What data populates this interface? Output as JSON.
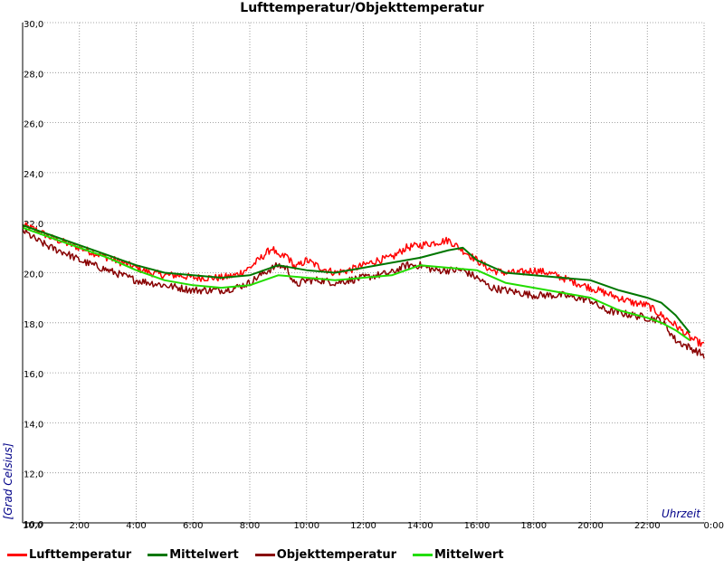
{
  "chart_data": {
    "type": "line",
    "title": "Lufttemperatur/Objekttemperatur",
    "xlabel": "Uhrzeit",
    "ylabel": "[Grad Celsius]",
    "ylim": [
      10,
      30
    ],
    "xlim": [
      0,
      24
    ],
    "grid": true,
    "legend_position": "bottom",
    "y_ticks": [
      "10,0",
      "12,0",
      "14,0",
      "16,0",
      "18,0",
      "20,0",
      "22,0",
      "24,0",
      "26,0",
      "28,0",
      "30,0"
    ],
    "x_ticks": [
      "10,0",
      "2:00",
      "4:00",
      "6:00",
      "8:00",
      "10:00",
      "12:00",
      "14:00",
      "16:00",
      "18:00",
      "20:00",
      "22:00",
      "0:00"
    ],
    "series": [
      {
        "name": "Lufttemperatur",
        "color": "#ff0000",
        "noise": 0.3,
        "x": [
          0,
          0.5,
          1,
          1.5,
          2,
          2.5,
          3,
          3.5,
          4,
          4.5,
          5,
          5.5,
          6,
          6.5,
          7,
          7.5,
          8,
          8.5,
          8.8,
          9,
          9.3,
          9.6,
          10,
          10.5,
          11,
          11.5,
          12,
          12.5,
          13,
          13.5,
          14,
          14.5,
          15,
          15.5,
          16,
          16.5,
          17,
          17.5,
          18,
          18.5,
          19,
          19.5,
          20,
          20.5,
          21,
          21.5,
          22,
          22.5,
          23,
          23.5,
          24
        ],
        "y": [
          21.9,
          21.7,
          21.4,
          21.2,
          21.0,
          20.8,
          20.6,
          20.4,
          20.2,
          20.0,
          19.9,
          19.9,
          19.8,
          19.8,
          19.8,
          19.9,
          20.2,
          20.7,
          21.0,
          20.6,
          20.7,
          20.2,
          20.5,
          20.2,
          20.0,
          20.1,
          20.3,
          20.5,
          20.6,
          21.0,
          21.1,
          21.2,
          21.3,
          20.9,
          20.5,
          20.1,
          20.0,
          20.0,
          20.1,
          20.0,
          19.8,
          19.6,
          19.4,
          19.2,
          19.0,
          18.8,
          18.7,
          18.3,
          17.9,
          17.4,
          17.1
        ]
      },
      {
        "name": "Mittelwert",
        "color": "#007700",
        "noise": 0,
        "x": [
          0,
          1,
          2,
          3,
          4,
          5,
          6,
          7,
          8,
          9,
          10,
          11,
          12,
          13,
          14,
          15,
          15.5,
          16,
          17,
          18,
          19,
          20,
          21,
          22,
          22.5,
          23,
          23.5
        ],
        "y": [
          21.9,
          21.5,
          21.1,
          20.7,
          20.3,
          20.0,
          19.9,
          19.8,
          19.9,
          20.3,
          20.1,
          20.0,
          20.2,
          20.4,
          20.6,
          20.9,
          21.0,
          20.5,
          20.0,
          19.9,
          19.8,
          19.7,
          19.3,
          19.0,
          18.8,
          18.3,
          17.6
        ]
      },
      {
        "name": "Objekttemperatur",
        "color": "#880000",
        "noise": 0.3,
        "x": [
          0,
          0.5,
          1,
          1.5,
          2,
          2.5,
          3,
          3.5,
          4,
          4.5,
          5,
          5.5,
          6,
          6.5,
          7,
          7.5,
          8,
          8.5,
          9,
          9.3,
          9.6,
          10,
          10.5,
          11,
          11.5,
          12,
          12.5,
          13,
          13.5,
          14,
          14.5,
          15,
          15.5,
          16,
          16.5,
          17,
          17.5,
          18,
          18.5,
          19,
          19.5,
          20,
          20.5,
          21,
          21.5,
          22,
          22.5,
          23,
          23.5,
          24
        ],
        "y": [
          21.7,
          21.3,
          21.0,
          20.8,
          20.5,
          20.3,
          20.1,
          19.9,
          19.7,
          19.6,
          19.5,
          19.4,
          19.3,
          19.3,
          19.3,
          19.4,
          19.6,
          20.0,
          20.3,
          20.2,
          19.5,
          19.7,
          19.7,
          19.6,
          19.7,
          19.8,
          19.9,
          20.0,
          20.3,
          20.3,
          20.1,
          20.1,
          20.1,
          19.8,
          19.4,
          19.3,
          19.2,
          19.1,
          19.1,
          19.1,
          19.0,
          18.9,
          18.5,
          18.4,
          18.3,
          18.2,
          18.1,
          17.3,
          17.0,
          16.7
        ]
      },
      {
        "name": "Mittelwert",
        "color": "#22dd00",
        "noise": 0,
        "x": [
          0,
          1,
          2,
          3,
          4,
          5,
          6,
          7,
          8,
          9,
          10,
          11,
          12,
          13,
          14,
          15,
          16,
          17,
          18,
          19,
          20,
          21,
          22,
          22.5,
          23,
          23.5
        ],
        "y": [
          21.8,
          21.4,
          21.0,
          20.6,
          20.1,
          19.7,
          19.5,
          19.4,
          19.5,
          19.9,
          19.8,
          19.7,
          19.8,
          19.9,
          20.3,
          20.2,
          20.1,
          19.6,
          19.4,
          19.2,
          19.0,
          18.5,
          18.2,
          18.0,
          17.7,
          17.3
        ]
      }
    ]
  }
}
